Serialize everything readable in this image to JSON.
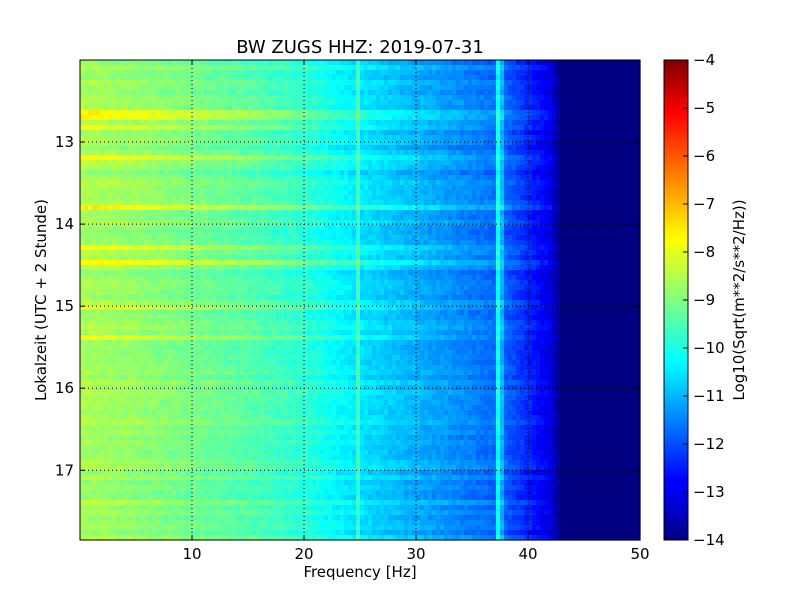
{
  "chart_data": {
    "type": "heatmap",
    "title": "BW ZUGS HHZ: 2019-07-31",
    "xlabel": "Frequency [Hz]",
    "ylabel": "Lokalzeit (UTC + 2 Stunde)",
    "xlim": [
      0,
      50
    ],
    "ylim": [
      12.0,
      17.85
    ],
    "y_inverted": true,
    "x_ticks": [
      10,
      20,
      30,
      40,
      50
    ],
    "y_ticks": [
      13,
      14,
      15,
      16,
      17
    ],
    "grid": true,
    "colormap": "jet",
    "colorbar": {
      "label": "Log10(Sqrt(m**2/s**2/Hz))",
      "range": [
        -14,
        -4
      ],
      "ticks": [
        -4,
        -5,
        -6,
        -7,
        -8,
        -9,
        -10,
        -11,
        -12,
        -13,
        -14
      ]
    },
    "value_profile_vs_frequency": {
      "x": [
        0,
        5,
        10,
        15,
        20,
        22,
        25,
        30,
        35,
        38,
        40,
        42,
        43,
        50
      ],
      "values": [
        -8.6,
        -8.8,
        -9.1,
        -9.4,
        -9.8,
        -10.1,
        -10.5,
        -11.0,
        -11.5,
        -11.8,
        -12.4,
        -13.0,
        -14.0,
        -14.0
      ]
    },
    "bright_bands_hours": [
      12.67,
      12.83,
      13.2,
      13.82,
      14.28,
      14.45,
      15.0,
      15.4
    ],
    "bright_lines_hz": [
      24.8,
      37.3,
      37.6
    ]
  }
}
